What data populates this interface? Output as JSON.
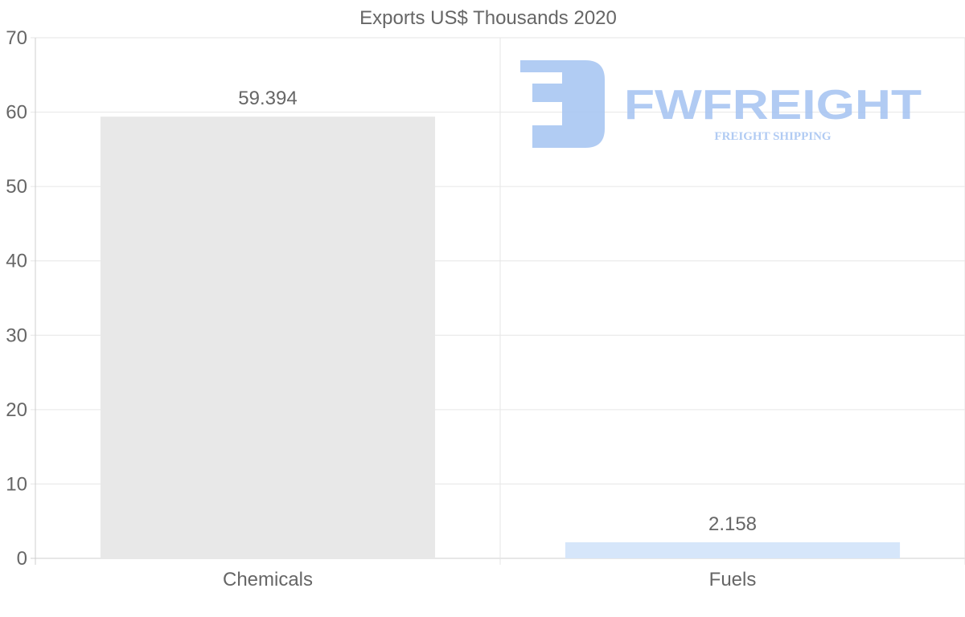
{
  "chart_data": {
    "type": "bar",
    "title": "Exports US$ Thousands 2020",
    "categories": [
      "Chemicals",
      "Fuels"
    ],
    "values": [
      59.394,
      2.158
    ],
    "data_labels": [
      "59.394",
      "2.158"
    ],
    "bar_colors": [
      "#e8e8e8",
      "#d6e6fa"
    ],
    "xlabel": "",
    "ylabel": "",
    "ylim": [
      0,
      70
    ],
    "yticks": [
      0,
      10,
      20,
      30,
      40,
      50,
      60,
      70
    ],
    "grid": true,
    "legend": "none"
  },
  "watermark": {
    "brand": "FWFREIGHT",
    "tagline": "FREIGHT SHIPPING",
    "color": "#a9c6f2"
  }
}
